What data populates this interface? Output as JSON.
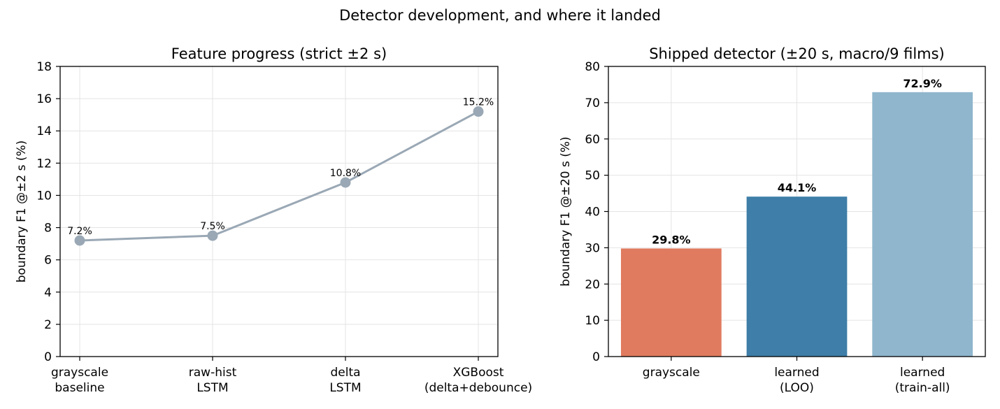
{
  "figure": {
    "suptitle": "Detector development, and where it landed"
  },
  "chart_data": [
    {
      "type": "line",
      "title": "Feature progress (strict ±2 s)",
      "xlabel": "",
      "ylabel": "boundary F1 @±2 s (%)",
      "categories": [
        [
          "grayscale",
          "baseline"
        ],
        [
          "raw-hist",
          "LSTM"
        ],
        [
          "delta",
          "LSTM"
        ],
        [
          "XGBoost",
          "(delta+debounce)"
        ]
      ],
      "values": [
        7.2,
        7.5,
        10.8,
        15.2
      ],
      "data_labels": [
        "7.2%",
        "7.5%",
        "10.8%",
        "15.2%"
      ],
      "ylim": [
        0,
        18
      ],
      "yticks": [
        0,
        2,
        4,
        6,
        8,
        10,
        12,
        14,
        16,
        18
      ],
      "grid": true,
      "color": "#9aa8b5"
    },
    {
      "type": "bar",
      "title": "Shipped detector (±20 s, macro/9 films)",
      "xlabel": "",
      "ylabel": "boundary F1 @±20 s (%)",
      "categories": [
        [
          "grayscale"
        ],
        [
          "learned",
          "(LOO)"
        ],
        [
          "learned",
          "(train-all)"
        ]
      ],
      "values": [
        29.8,
        44.1,
        72.9
      ],
      "data_labels": [
        "29.8%",
        "44.1%",
        "72.9%"
      ],
      "ylim": [
        0,
        80
      ],
      "yticks": [
        0,
        10,
        20,
        30,
        40,
        50,
        60,
        70,
        80
      ],
      "grid": true,
      "colors": [
        "#e07b5f",
        "#3e7ea8",
        "#8fb6cd"
      ]
    }
  ]
}
